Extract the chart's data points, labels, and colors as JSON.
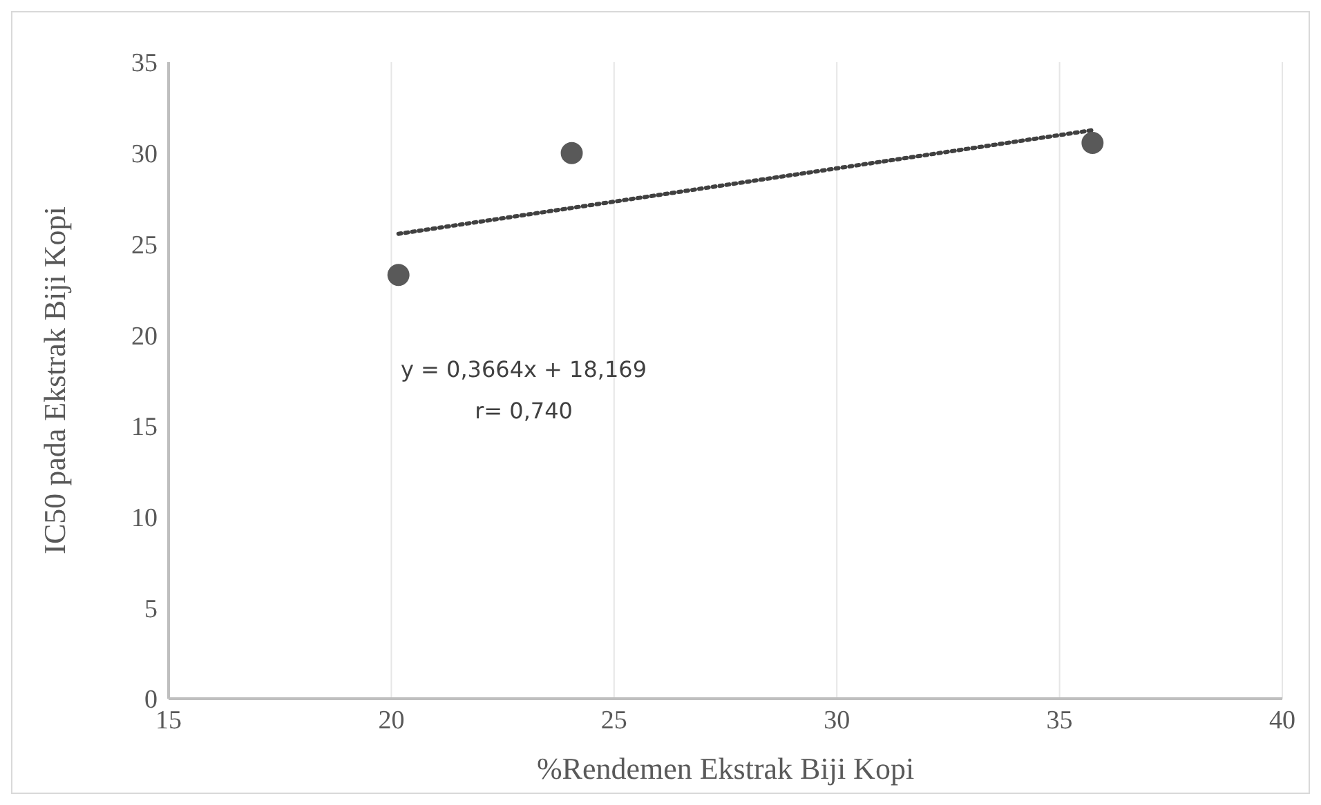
{
  "chart_data": {
    "type": "scatter",
    "xlabel": "%Rendemen Ekstrak Biji Kopi",
    "ylabel": "IC50 pada Ekstrak Biji Kopi",
    "xlim": [
      15,
      40
    ],
    "xticks": [
      15,
      20,
      25,
      30,
      35,
      40
    ],
    "ylim": [
      0,
      35
    ],
    "yticks": [
      0,
      5,
      10,
      15,
      20,
      25,
      30,
      35
    ],
    "grid": "x",
    "x": [
      20.16,
      24.05,
      35.74
    ],
    "series": [
      {
        "color": "#595959",
        "marker": "circle",
        "values": [
          23.3,
          30.0,
          30.56
        ]
      },
      {
        "type": "line",
        "color": "#404040",
        "line_style": "dotted",
        "marker": "none",
        "x": [
          20.16,
          35.74
        ],
        "values": [
          25.56,
          31.26
        ]
      }
    ],
    "annotations": [
      "y = 0,3664x + 18,169",
      "r= 0,740"
    ]
  }
}
